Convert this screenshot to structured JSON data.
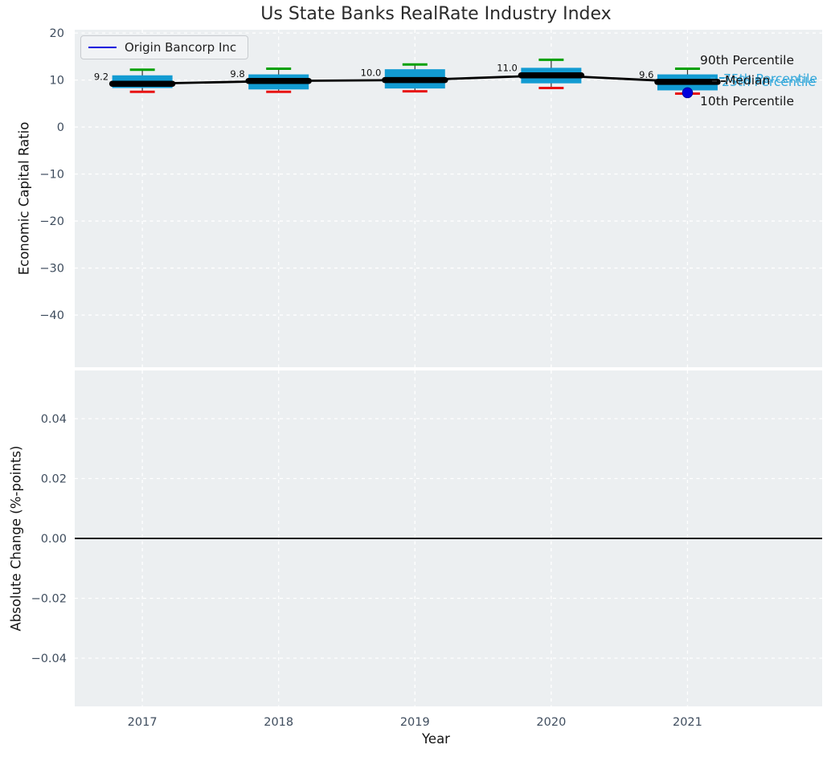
{
  "title": "Us State Banks RealRate Industry Index",
  "legend": {
    "label": "Origin Bancorp Inc",
    "line_color": "#0000dd",
    "position": "upper left"
  },
  "axes": {
    "top_ylabel": "Economic Capital Ratio",
    "bottom_ylabel": "Absolute Change (%-points)",
    "xlabel": "Year"
  },
  "annotations": {
    "p90": "90th Percentile",
    "p75": "75th Percentile",
    "median": "Median",
    "p25": "25th Percentile",
    "p10": "10th Percentile"
  },
  "colors": {
    "box_fill": "#129bd2",
    "percentile_text": "#2fa6da",
    "p90_cap": "#00a000",
    "p10_cap": "#e81212",
    "median_line": "#000000",
    "company_blue": "#0000dd",
    "plot_bg": "#eceff1",
    "grid": "#ffffff",
    "tick_text": "#3f4d5e",
    "zero_line": "#000000"
  },
  "chart_data": [
    {
      "type": "boxplot",
      "title": "Us State Banks RealRate Industry Index",
      "ylabel": "Economic Capital Ratio",
      "ylim": [
        -51.1,
        20.7
      ],
      "yticks": [
        20,
        10,
        0,
        -10,
        -20,
        -30,
        -40
      ],
      "ytick_labels": [
        "20",
        "10",
        "0",
        "−10",
        "−20",
        "−30",
        "−40"
      ],
      "xlim": [
        2016.504,
        2021.988
      ],
      "years": [
        2017,
        2018,
        2019,
        2020,
        2021
      ],
      "grid": true,
      "legend_position": "upper left",
      "series": [
        {
          "name": "90th Percentile",
          "values": [
            12.2,
            12.4,
            13.3,
            14.3,
            12.4
          ]
        },
        {
          "name": "75th Percentile",
          "values": [
            11.0,
            11.2,
            12.3,
            12.6,
            11.2
          ]
        },
        {
          "name": "Median",
          "values": [
            9.2,
            9.8,
            10.0,
            11.0,
            9.6
          ]
        },
        {
          "name": "25th Percentile",
          "values": [
            8.3,
            8.0,
            8.2,
            9.3,
            7.8
          ]
        },
        {
          "name": "10th Percentile",
          "values": [
            7.5,
            7.5,
            7.6,
            8.3,
            7.1
          ]
        }
      ],
      "median_labels": [
        "9.2",
        "9.8",
        "10.0",
        "11.0",
        "9.6"
      ],
      "company_series": {
        "name": "Origin Bancorp Inc",
        "points": [
          {
            "year": 2021,
            "value": 7.3
          }
        ]
      }
    },
    {
      "type": "line",
      "ylabel": "Absolute Change (%-points)",
      "ylim": [
        -0.0561,
        0.0561
      ],
      "yticks": [
        0.04,
        0.02,
        0.0,
        -0.02,
        -0.04
      ],
      "ytick_labels": [
        "0.04",
        "0.02",
        "0.00",
        "−0.02",
        "−0.04"
      ],
      "xlabel": "Year",
      "xtick_labels": [
        "2017",
        "2018",
        "2019",
        "2020",
        "2021"
      ],
      "zero_line": 0.0,
      "series": []
    }
  ]
}
